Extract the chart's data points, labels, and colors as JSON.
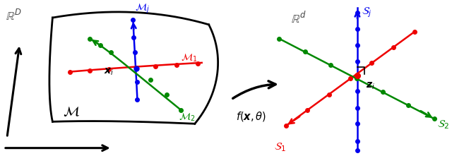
{
  "bg_color": "#ffffff",
  "left_panel": {
    "RD_label": "$\\mathbb{R}^D$",
    "M_label": "$\\mathcal{M}$",
    "Mj_label": "$\\mathcal{M}_j$",
    "M1_label": "$\\mathcal{M}_1$",
    "M2_label": "$\\mathcal{M}_2$",
    "xi_label": "$\\boldsymbol{x}_i$",
    "blue_color": "#0000ee",
    "red_color": "#ee0000",
    "green_color": "#008800"
  },
  "arrow_label": "$f(\\boldsymbol{x},\\theta)$",
  "right_panel": {
    "Rd_label": "$\\mathbb{R}^d$",
    "Sj_label": "$\\mathcal{S}_j$",
    "S1_label": "$\\mathcal{S}_1$",
    "S2_label": "$\\mathcal{S}_2$",
    "zi_label": "$\\boldsymbol{z}_i$",
    "blue_color": "#0000ee",
    "red_color": "#ee0000",
    "green_color": "#008800"
  }
}
